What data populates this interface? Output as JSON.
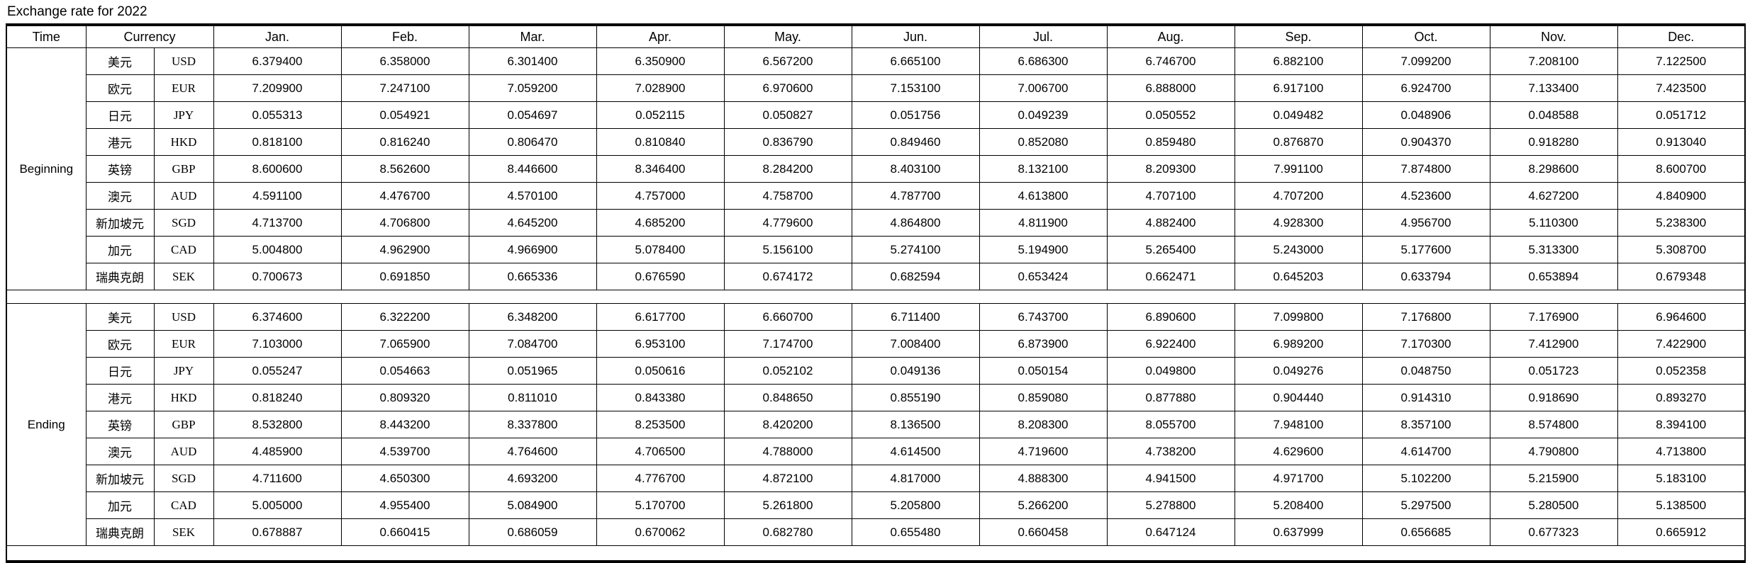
{
  "title": "Exchange rate for 2022",
  "header": {
    "time": "Time",
    "currency": "Currency"
  },
  "chart_data": {
    "type": "table",
    "title": "Exchange rate for 2022",
    "shaded_columns": [
      "Feb.",
      "Apr.",
      "Jun.",
      "Aug.",
      "Oct.",
      "Dec."
    ],
    "shaded_color": "#ECE9D8",
    "months": [
      "Jan.",
      "Feb.",
      "Mar.",
      "Apr.",
      "May.",
      "Jun.",
      "Jul.",
      "Aug.",
      "Sep.",
      "Oct.",
      "Nov.",
      "Dec."
    ],
    "sections": [
      {
        "label": "Beginning",
        "rows": [
          {
            "currency_cn": "美元",
            "code": "USD",
            "values": [
              "6.379400",
              "6.358000",
              "6.301400",
              "6.350900",
              "6.567200",
              "6.665100",
              "6.686300",
              "6.746700",
              "6.882100",
              "7.099200",
              "7.208100",
              "7.122500"
            ]
          },
          {
            "currency_cn": "欧元",
            "code": "EUR",
            "values": [
              "7.209900",
              "7.247100",
              "7.059200",
              "7.028900",
              "6.970600",
              "7.153100",
              "7.006700",
              "6.888000",
              "6.917100",
              "6.924700",
              "7.133400",
              "7.423500"
            ]
          },
          {
            "currency_cn": "日元",
            "code": "JPY",
            "values": [
              "0.055313",
              "0.054921",
              "0.054697",
              "0.052115",
              "0.050827",
              "0.051756",
              "0.049239",
              "0.050552",
              "0.049482",
              "0.048906",
              "0.048588",
              "0.051712"
            ]
          },
          {
            "currency_cn": "港元",
            "code": "HKD",
            "values": [
              "0.818100",
              "0.816240",
              "0.806470",
              "0.810840",
              "0.836790",
              "0.849460",
              "0.852080",
              "0.859480",
              "0.876870",
              "0.904370",
              "0.918280",
              "0.913040"
            ]
          },
          {
            "currency_cn": "英镑",
            "code": "GBP",
            "values": [
              "8.600600",
              "8.562600",
              "8.446600",
              "8.346400",
              "8.284200",
              "8.403100",
              "8.132100",
              "8.209300",
              "7.991100",
              "7.874800",
              "8.298600",
              "8.600700"
            ]
          },
          {
            "currency_cn": "澳元",
            "code": "AUD",
            "values": [
              "4.591100",
              "4.476700",
              "4.570100",
              "4.757000",
              "4.758700",
              "4.787700",
              "4.613800",
              "4.707100",
              "4.707200",
              "4.523600",
              "4.627200",
              "4.840900"
            ]
          },
          {
            "currency_cn": "新加坡元",
            "code": "SGD",
            "values": [
              "4.713700",
              "4.706800",
              "4.645200",
              "4.685200",
              "4.779600",
              "4.864800",
              "4.811900",
              "4.882400",
              "4.928300",
              "4.956700",
              "5.110300",
              "5.238300"
            ]
          },
          {
            "currency_cn": "加元",
            "code": "CAD",
            "values": [
              "5.004800",
              "4.962900",
              "4.966900",
              "5.078400",
              "5.156100",
              "5.274100",
              "5.194900",
              "5.265400",
              "5.243000",
              "5.177600",
              "5.313300",
              "5.308700"
            ]
          },
          {
            "currency_cn": "瑞典克朗",
            "code": "SEK",
            "values": [
              "0.700673",
              "0.691850",
              "0.665336",
              "0.676590",
              "0.674172",
              "0.682594",
              "0.653424",
              "0.662471",
              "0.645203",
              "0.633794",
              "0.653894",
              "0.679348"
            ]
          }
        ]
      },
      {
        "label": "Ending",
        "rows": [
          {
            "currency_cn": "美元",
            "code": "USD",
            "values": [
              "6.374600",
              "6.322200",
              "6.348200",
              "6.617700",
              "6.660700",
              "6.711400",
              "6.743700",
              "6.890600",
              "7.099800",
              "7.176800",
              "7.176900",
              "6.964600"
            ]
          },
          {
            "currency_cn": "欧元",
            "code": "EUR",
            "values": [
              "7.103000",
              "7.065900",
              "7.084700",
              "6.953100",
              "7.174700",
              "7.008400",
              "6.873900",
              "6.922400",
              "6.989200",
              "7.170300",
              "7.412900",
              "7.422900"
            ]
          },
          {
            "currency_cn": "日元",
            "code": "JPY",
            "values": [
              "0.055247",
              "0.054663",
              "0.051965",
              "0.050616",
              "0.052102",
              "0.049136",
              "0.050154",
              "0.049800",
              "0.049276",
              "0.048750",
              "0.051723",
              "0.052358"
            ]
          },
          {
            "currency_cn": "港元",
            "code": "HKD",
            "values": [
              "0.818240",
              "0.809320",
              "0.811010",
              "0.843380",
              "0.848650",
              "0.855190",
              "0.859080",
              "0.877880",
              "0.904440",
              "0.914310",
              "0.918690",
              "0.893270"
            ]
          },
          {
            "currency_cn": "英镑",
            "code": "GBP",
            "values": [
              "8.532800",
              "8.443200",
              "8.337800",
              "8.253500",
              "8.420200",
              "8.136500",
              "8.208300",
              "8.055700",
              "7.948100",
              "8.357100",
              "8.574800",
              "8.394100"
            ]
          },
          {
            "currency_cn": "澳元",
            "code": "AUD",
            "values": [
              "4.485900",
              "4.539700",
              "4.764600",
              "4.706500",
              "4.788000",
              "4.614500",
              "4.719600",
              "4.738200",
              "4.629600",
              "4.614700",
              "4.790800",
              "4.713800"
            ]
          },
          {
            "currency_cn": "新加坡元",
            "code": "SGD",
            "values": [
              "4.711600",
              "4.650300",
              "4.693200",
              "4.776700",
              "4.872100",
              "4.817000",
              "4.888300",
              "4.941500",
              "4.971700",
              "5.102200",
              "5.215900",
              "5.183100"
            ]
          },
          {
            "currency_cn": "加元",
            "code": "CAD",
            "values": [
              "5.005000",
              "4.955400",
              "5.084900",
              "5.170700",
              "5.261800",
              "5.205800",
              "5.266200",
              "5.278800",
              "5.208400",
              "5.297500",
              "5.280500",
              "5.138500"
            ]
          },
          {
            "currency_cn": "瑞典克朗",
            "code": "SEK",
            "values": [
              "0.678887",
              "0.660415",
              "0.686059",
              "0.670062",
              "0.682780",
              "0.655480",
              "0.660458",
              "0.647124",
              "0.637999",
              "0.656685",
              "0.677323",
              "0.665912"
            ]
          }
        ]
      }
    ]
  }
}
